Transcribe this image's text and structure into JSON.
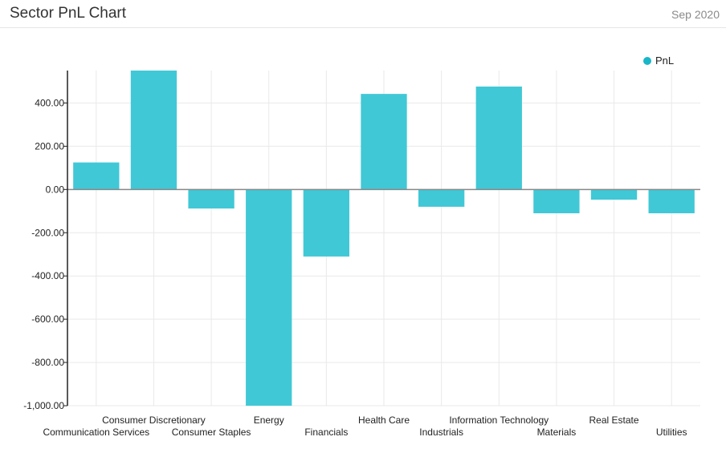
{
  "header": {
    "title": "Sector PnL Chart",
    "date": "Sep 2020"
  },
  "colors": {
    "bar": "#40c8d6",
    "legend_dot": "#19b6c8",
    "grid": "#e9e9e9",
    "axis": "#222222",
    "zero_line": "#888888"
  },
  "chart_data": {
    "type": "bar",
    "categories": [
      "Communication Services",
      "Consumer Discretionary",
      "Consumer Staples",
      "Energy",
      "Financials",
      "Health Care",
      "Industrials",
      "Information Technology",
      "Materials",
      "Real Estate",
      "Utilities"
    ],
    "series": [
      {
        "name": "PnL",
        "values": [
          125,
          550,
          -88,
          -1010,
          -310,
          442,
          -80,
          476,
          -110,
          -47,
          -110
        ]
      }
    ],
    "yticks": [
      "400.00",
      "200.00",
      "0.00",
      "-200.00",
      "-400.00",
      "-600.00",
      "-800.00",
      "-1,000.00"
    ],
    "ytick_values": [
      400,
      200,
      0,
      -200,
      -400,
      -600,
      -800,
      -1000
    ],
    "ylim": [
      -1000,
      550
    ],
    "grid": true,
    "legend_position": "top-right"
  }
}
